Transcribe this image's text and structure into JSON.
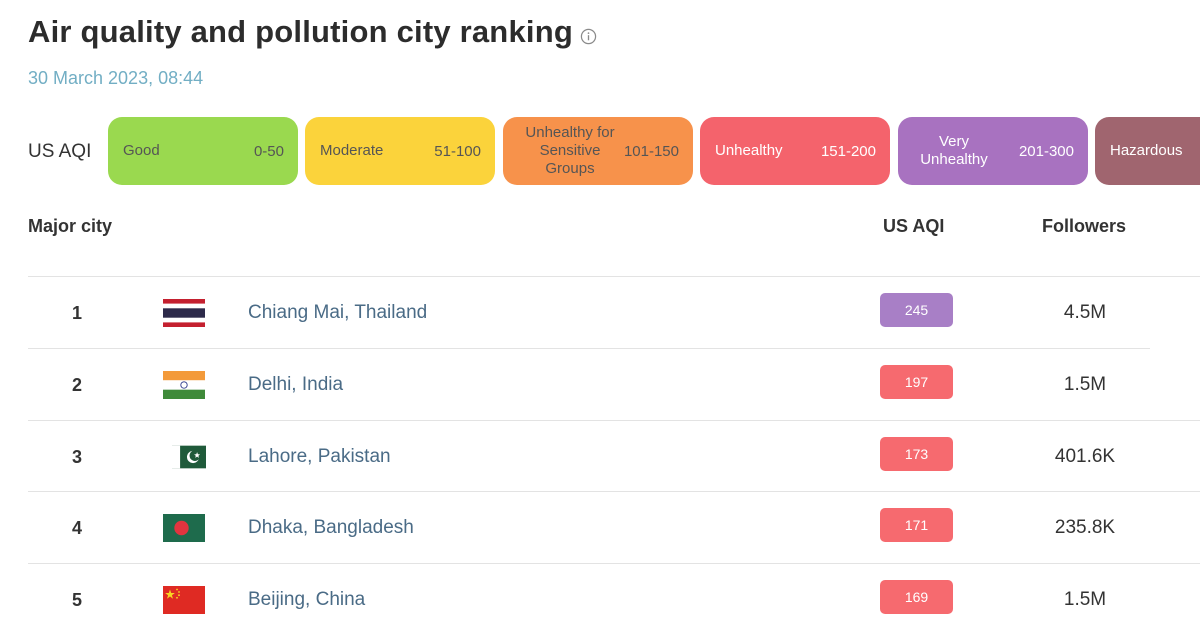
{
  "page": {
    "title": "Air quality and pollution city ranking",
    "timestamp": "30 March 2023, 08:44"
  },
  "legend": {
    "label": "US AQI",
    "levels": [
      {
        "name": "Good",
        "range": "0-50",
        "color": "#9ad94f"
      },
      {
        "name": "Moderate",
        "range": "51-100",
        "color": "#fbd33b"
      },
      {
        "name": "Unhealthy for Sensitive Groups",
        "range": "101-150",
        "color": "#f7924b"
      },
      {
        "name": "Unhealthy",
        "range": "151-200",
        "color": "#f4636c"
      },
      {
        "name": "Very Unhealthy",
        "range": "201-300",
        "color": "#a872c0"
      },
      {
        "name": "Hazardous",
        "range": "",
        "color": "#a0656f"
      }
    ]
  },
  "table": {
    "headers": {
      "city": "Major city",
      "aqi": "US AQI",
      "followers": "Followers"
    },
    "rows": [
      {
        "rank": "1",
        "city": "Chiang Mai, Thailand",
        "flag": "thailand-flag",
        "aqi": "245",
        "aqi_color": "#a87fc6",
        "followers": "4.5M"
      },
      {
        "rank": "2",
        "city": "Delhi, India",
        "flag": "india-flag",
        "aqi": "197",
        "aqi_color": "#f66a6f",
        "followers": "1.5M"
      },
      {
        "rank": "3",
        "city": "Lahore, Pakistan",
        "flag": "pakistan-flag",
        "aqi": "173",
        "aqi_color": "#f66a6f",
        "followers": "401.6K"
      },
      {
        "rank": "4",
        "city": "Dhaka, Bangladesh",
        "flag": "bangladesh-flag",
        "aqi": "171",
        "aqi_color": "#f66a6f",
        "followers": "235.8K"
      },
      {
        "rank": "5",
        "city": "Beijing, China",
        "flag": "china-flag",
        "aqi": "169",
        "aqi_color": "#f66a6f",
        "followers": "1.5M"
      }
    ]
  }
}
